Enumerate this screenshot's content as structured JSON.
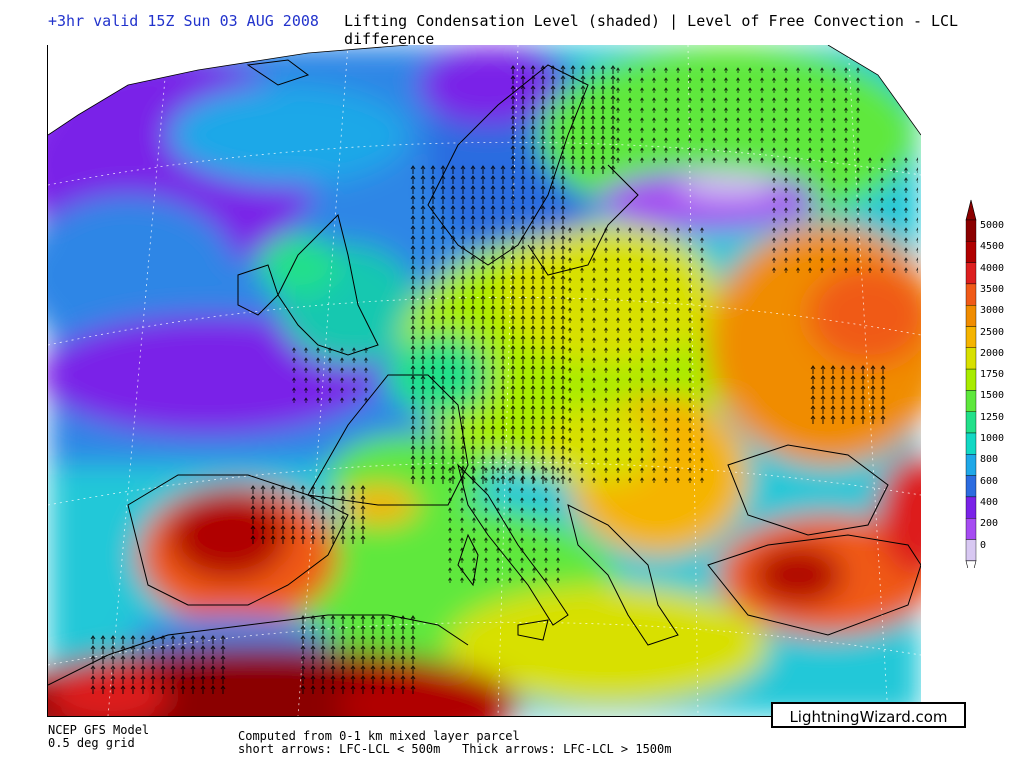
{
  "header": {
    "valid_text": "+3hr valid 15Z Sun 03 AUG 2008",
    "title": "Lifting Condensation Level (shaded) | Level of Free Convection - LCL difference",
    "valid_color": "#2233cc"
  },
  "legend": {
    "levels": [
      "5000",
      "4500",
      "4000",
      "3500",
      "3000",
      "2500",
      "2000",
      "1750",
      "1500",
      "1250",
      "1000",
      "800",
      "600",
      "400",
      "200",
      "0"
    ],
    "colors": [
      "#8b0000",
      "#b00000",
      "#dd1f1f",
      "#f05a18",
      "#f08c00",
      "#f5b400",
      "#d8e000",
      "#a8ec00",
      "#5ee83c",
      "#22e08a",
      "#12d8c4",
      "#1fa8e8",
      "#2c6ce0",
      "#7a22e8",
      "#a64cf2",
      "#d8c8f2"
    ]
  },
  "map": {
    "description_icon": "europe-weather-map",
    "background_color": "#2cd0c8"
  },
  "footer": {
    "model_line1": "NCEP GFS Model",
    "model_line2": "0.5 deg grid",
    "computed_line": "Computed from 0-1 km mixed layer parcel",
    "arrows_line": "short arrows: LFC-LCL < 500m   Thick arrows: LFC-LCL > 1500m",
    "credit": "LightningWizard.com"
  }
}
